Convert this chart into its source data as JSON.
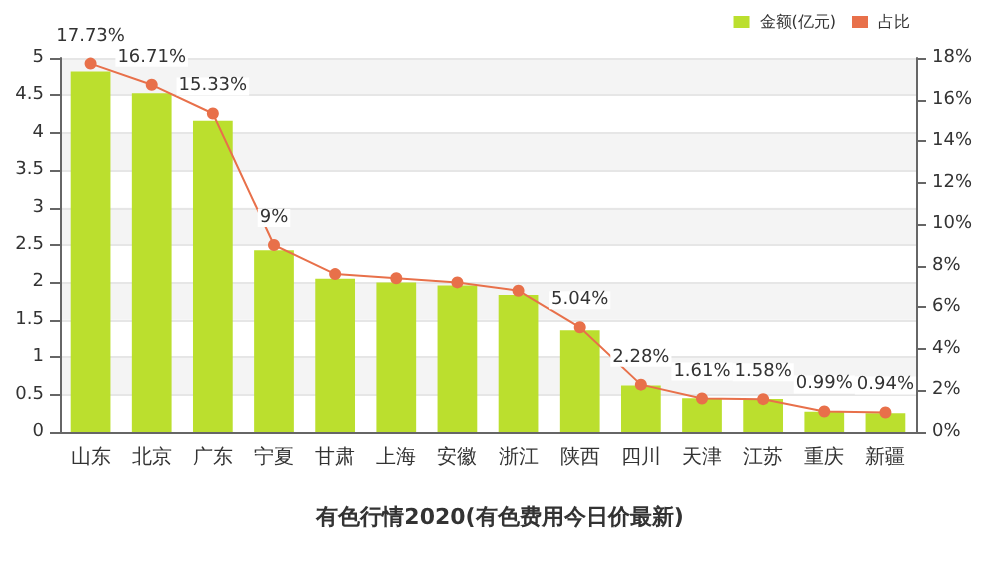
{
  "chart_data": {
    "type": "bar",
    "title": "有色行情2020(有色费用今日价最新)",
    "categories": [
      "山东",
      "北京",
      "广东",
      "宁夏",
      "甘肃",
      "上海",
      "安徽",
      "浙江",
      "陕西",
      "四川",
      "天津",
      "江苏",
      "重庆",
      "新疆"
    ],
    "series": [
      {
        "name": "金额(亿元)",
        "color": "#bbdf2e",
        "values": [
          4.82,
          4.53,
          4.16,
          2.43,
          2.05,
          2.0,
          1.96,
          1.83,
          1.36,
          0.62,
          0.45,
          0.44,
          0.27,
          0.25
        ]
      },
      {
        "name": "占比",
        "type": "line",
        "axis": "y2",
        "color": "#e8704a",
        "values": [
          17.73,
          16.71,
          15.33,
          9,
          7.6,
          7.4,
          7.2,
          6.8,
          5.04,
          2.28,
          1.61,
          1.58,
          0.99,
          0.94
        ],
        "value_labels": [
          "17.73%",
          "16.71%",
          "15.33%",
          "9%",
          null,
          null,
          null,
          null,
          "5.04%",
          "2.28%",
          "1.61%",
          "1.58%",
          "0.99%",
          "0.94%"
        ]
      }
    ],
    "ylim": [
      0,
      5
    ],
    "yticks": [
      0,
      0.5,
      1,
      1.5,
      2,
      2.5,
      3,
      3.5,
      4,
      4.5,
      5
    ],
    "y2lim": [
      0,
      18
    ],
    "y2ticks": [
      {
        "value": 0,
        "label": "0%"
      },
      {
        "value": 2,
        "label": "2%"
      },
      {
        "value": 4,
        "label": "4%"
      },
      {
        "value": 6,
        "label": "6%"
      },
      {
        "value": 8,
        "label": "8%"
      },
      {
        "value": 10,
        "label": "10%"
      },
      {
        "value": 12,
        "label": "12%"
      },
      {
        "value": 14,
        "label": "14%"
      },
      {
        "value": 16,
        "label": "16%"
      },
      {
        "value": 18,
        "label": "18%"
      }
    ],
    "grid": "y",
    "legend": "top right",
    "marker": "circle",
    "line_style": "solid"
  }
}
